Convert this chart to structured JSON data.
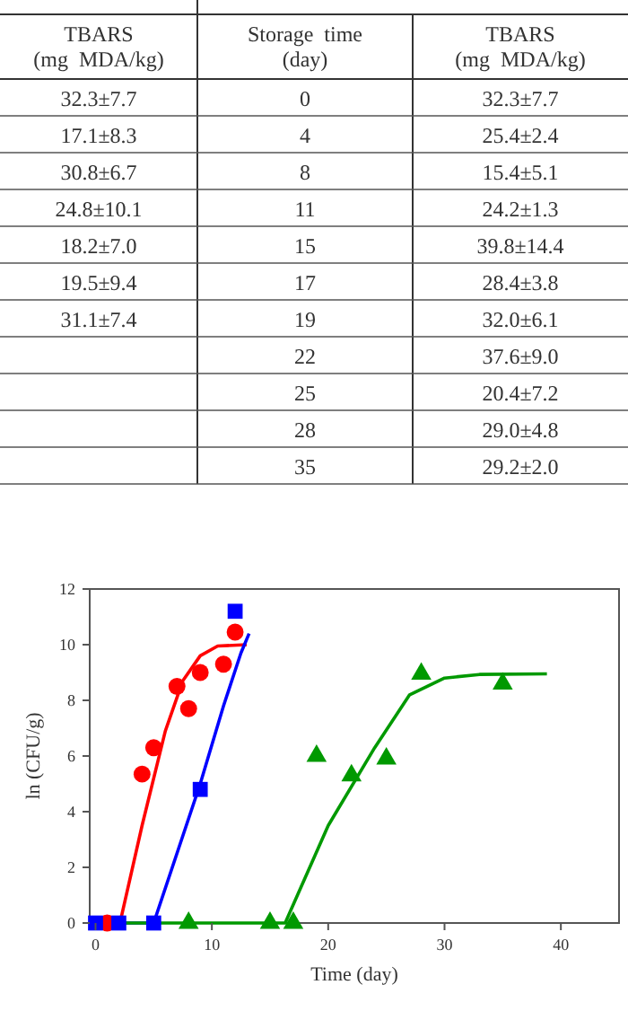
{
  "chart_data": [
    {
      "type": "other",
      "categories": [
        "TBARS\n(mg  MDA/kg)",
        "Storage  time\n(day)",
        "TBARS\n(mg  MDA/kg)"
      ],
      "cell_labels": [
        [
          "32.3±7.7",
          "0",
          "32.3±7.7"
        ],
        [
          "17.1±8.3",
          "4",
          "25.4±2.4"
        ],
        [
          "30.8±6.7",
          "8",
          "15.4±5.1"
        ],
        [
          "24.8±10.1",
          "11",
          "24.2±1.3"
        ],
        [
          "18.2±7.0",
          "15",
          "39.8±14.4"
        ],
        [
          "19.5±9.4",
          "17",
          "28.4±3.8"
        ],
        [
          "31.1±7.4",
          "19",
          "32.0±6.1"
        ],
        [
          null,
          "22",
          "37.6±9.0"
        ],
        [
          null,
          "25",
          "20.4±7.2"
        ],
        [
          null,
          "28",
          "29.0±4.8"
        ],
        [
          null,
          "35",
          "29.2±2.0"
        ]
      ]
    },
    {
      "type": "scatter",
      "xlabel": "Time (day)",
      "ylabel": "ln (CFU/g)",
      "xlim": [
        -0.5,
        45
      ],
      "ylim": [
        0,
        12
      ],
      "xticks": [
        0,
        10,
        20,
        30,
        40
      ],
      "yticks": [
        0,
        2,
        4,
        6,
        8,
        10,
        12
      ],
      "grid": false,
      "series": [
        {
          "type": "line",
          "color": "#ff0000",
          "marker": "none",
          "x": [
            0,
            2.1,
            4,
            6,
            7.5,
            9,
            10.5,
            13
          ],
          "values": [
            0,
            0,
            3.5,
            6.9,
            8.7,
            9.6,
            9.95,
            10
          ]
        },
        {
          "type": "line",
          "color": "#0000ff",
          "marker": "none",
          "x": [
            0,
            5,
            9,
            11,
            12.5,
            13.2
          ],
          "values": [
            0,
            0,
            5,
            7.8,
            9.7,
            10.4
          ]
        },
        {
          "type": "line",
          "color": "#009900",
          "marker": "none",
          "x": [
            0,
            16.3,
            20,
            24,
            27,
            30,
            33,
            38.8
          ],
          "values": [
            0,
            0,
            3.5,
            6.3,
            8.2,
            8.8,
            8.93,
            8.95
          ]
        },
        {
          "type": "scatter",
          "color": "#ff0000",
          "marker": "circle",
          "x": [
            1,
            4,
            5,
            7,
            8,
            9,
            11,
            12
          ],
          "values": [
            0,
            5.35,
            6.3,
            8.5,
            7.7,
            9.0,
            9.3,
            10.45
          ]
        },
        {
          "type": "scatter",
          "color": "#0000ff",
          "marker": "square",
          "x": [
            0,
            2,
            5,
            9,
            12
          ],
          "values": [
            0,
            0,
            0,
            4.8,
            11.2
          ]
        },
        {
          "type": "scatter",
          "color": "#009900",
          "marker": "triangle",
          "x": [
            8,
            15,
            17,
            19,
            22,
            25,
            28,
            35
          ],
          "values": [
            0,
            0,
            0,
            6.0,
            5.3,
            5.9,
            8.95,
            8.6
          ]
        }
      ]
    }
  ]
}
